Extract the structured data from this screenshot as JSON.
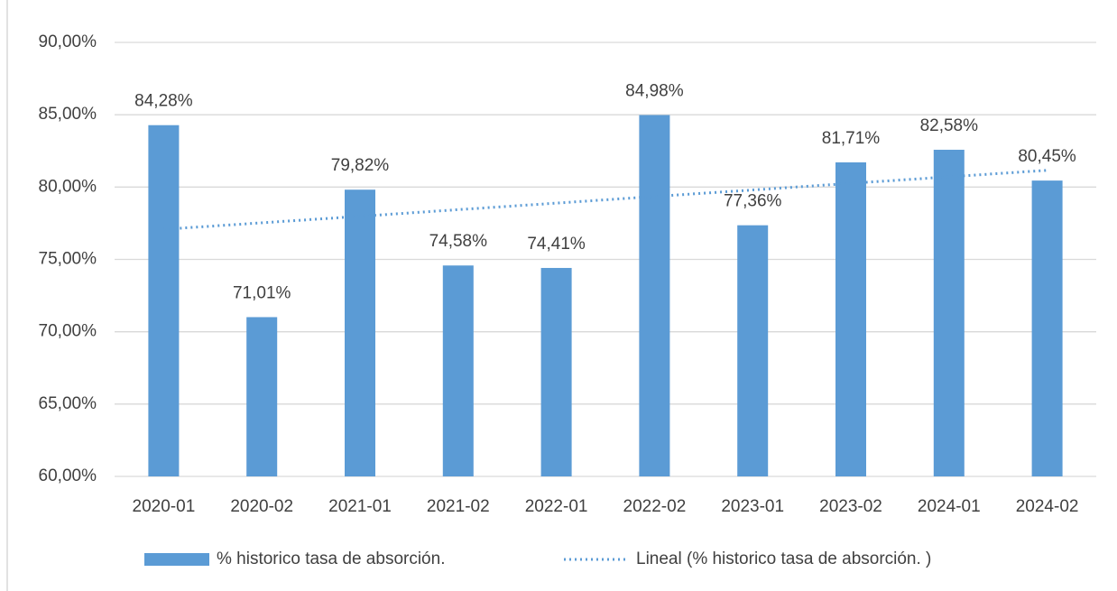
{
  "chart_data": {
    "type": "bar",
    "categories": [
      "2020-01",
      "2020-02",
      "2021-01",
      "2021-02",
      "2022-01",
      "2022-02",
      "2023-01",
      "2023-02",
      "2024-01",
      "2024-02"
    ],
    "series": [
      {
        "name": "% historico tasa de absorción.",
        "color": "#5b9bd5",
        "values": [
          84.28,
          71.01,
          79.82,
          74.58,
          74.41,
          84.98,
          77.36,
          81.71,
          82.58,
          80.45
        ],
        "value_labels": [
          "84,28%",
          "71,01%",
          "79,82%",
          "74,58%",
          "74,41%",
          "84,98%",
          "77,36%",
          "81,71%",
          "82,58%",
          "80,45%"
        ]
      },
      {
        "name": "Lineal (% historico tasa de absorción. )",
        "type": "line",
        "style": "dotted",
        "color": "#5b9bd5",
        "values": [
          77.08,
          77.53,
          77.98,
          78.44,
          78.89,
          79.35,
          79.8,
          80.26,
          80.71,
          81.16
        ]
      }
    ],
    "ylim": [
      60,
      90
    ],
    "yticks": [
      {
        "value": 60,
        "label": "60,00%"
      },
      {
        "value": 65,
        "label": "65,00%"
      },
      {
        "value": 70,
        "label": "70,00%"
      },
      {
        "value": 75,
        "label": "75,00%"
      },
      {
        "value": 80,
        "label": "80,00%"
      },
      {
        "value": 85,
        "label": "85,00%"
      },
      {
        "value": 90,
        "label": "90,00%"
      }
    ],
    "grid": true,
    "legend": "bottom"
  }
}
